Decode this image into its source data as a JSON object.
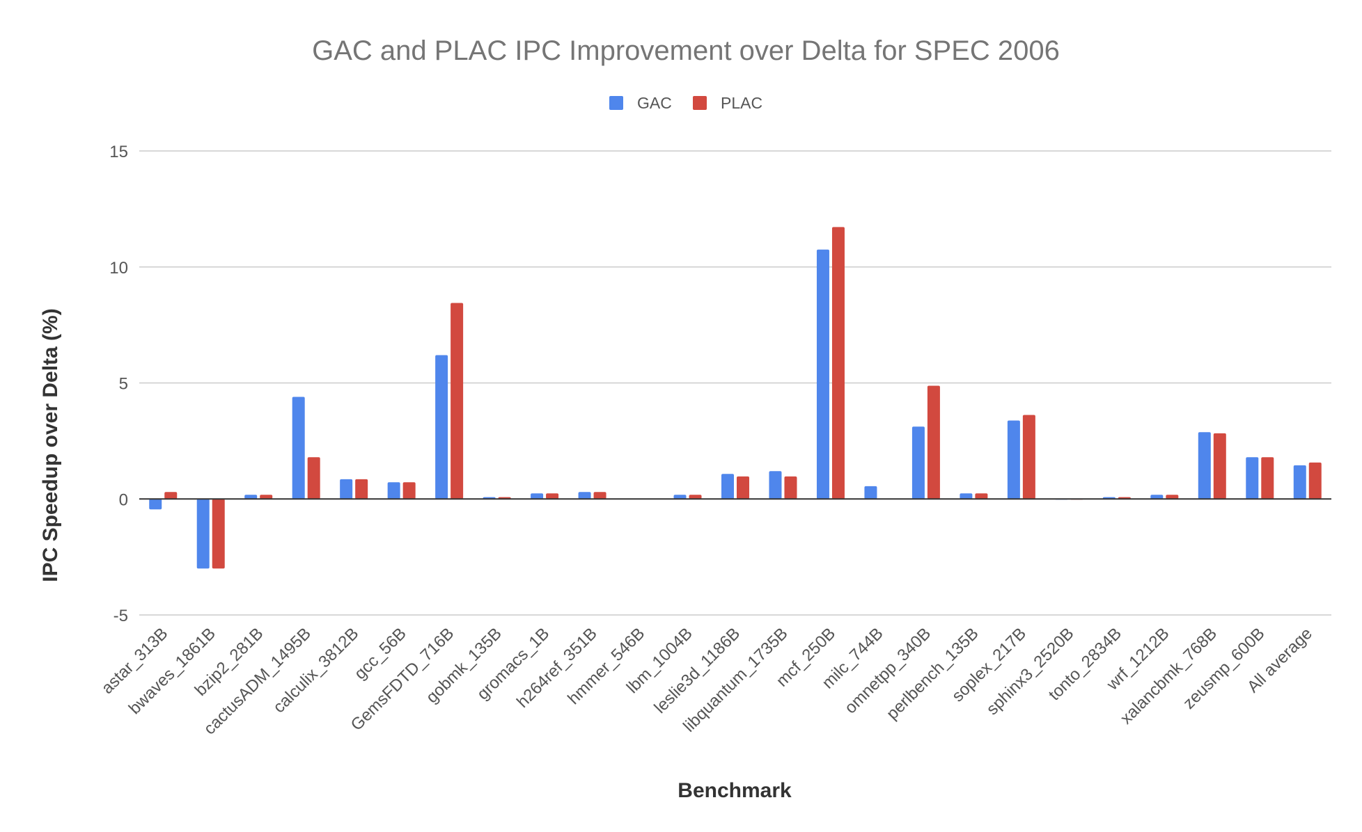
{
  "chart_data": {
    "type": "bar",
    "title": "GAC and PLAC IPC Improvement over Delta for SPEC 2006",
    "xlabel": "Benchmark",
    "ylabel": "IPC Speedup over Delta (%)",
    "ylim": [
      -5,
      15
    ],
    "yticks": [
      -5,
      0,
      5,
      10,
      15
    ],
    "grid": true,
    "legend_position": "top-center",
    "categories": [
      "astar_313B",
      "bwaves_1861B",
      "bzip2_281B",
      "cactusADM_1495B",
      "calculix_3812B",
      "gcc_56B",
      "GemsFDTD_716B",
      "gobmk_135B",
      "gromacs_1B",
      "h264ref_351B",
      "hmmer_546B",
      "lbm_1004B",
      "leslie3d_1186B",
      "libquantum_1735B",
      "mcf_250B",
      "milc_744B",
      "omnetpp_340B",
      "perlbench_135B",
      "soplex_217B",
      "sphinx3_2520B",
      "tonto_2834B",
      "wrf_1212B",
      "xalancbmk_768B",
      "zeusmp_600B",
      "All average"
    ],
    "series": [
      {
        "name": "GAC",
        "color": "#4f86ec",
        "values": [
          -0.45,
          -3.0,
          0.18,
          4.4,
          0.85,
          0.72,
          6.2,
          0.08,
          0.24,
          0.3,
          0.02,
          0.18,
          1.08,
          1.2,
          10.75,
          0.55,
          3.12,
          0.24,
          3.38,
          0.0,
          0.08,
          0.18,
          2.88,
          1.8,
          1.45
        ]
      },
      {
        "name": "PLAC",
        "color": "#d2493f",
        "values": [
          0.3,
          -3.0,
          0.18,
          1.8,
          0.85,
          0.72,
          8.45,
          0.08,
          0.24,
          0.3,
          0.02,
          0.18,
          0.97,
          0.97,
          11.72,
          0.02,
          4.88,
          0.24,
          3.62,
          0.0,
          0.08,
          0.18,
          2.83,
          1.8,
          1.57
        ]
      }
    ]
  }
}
